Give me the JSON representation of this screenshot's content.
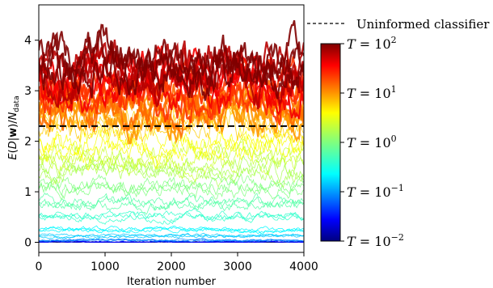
{
  "chart_data": {
    "type": "line",
    "title": "",
    "xlabel": "Iteration number",
    "ylabel": "E(D|w)/N_data",
    "xlim": [
      0,
      4000
    ],
    "ylim": [
      -0.2,
      4.7
    ],
    "x_ticks": [
      {
        "value": 0,
        "label": "0"
      },
      {
        "value": 1000,
        "label": "1000"
      },
      {
        "value": 2000,
        "label": "2000"
      },
      {
        "value": 3000,
        "label": "3000"
      },
      {
        "value": 4000,
        "label": "4000"
      }
    ],
    "y_ticks": [
      {
        "value": 0,
        "label": "0"
      },
      {
        "value": 1,
        "label": "1"
      },
      {
        "value": 2,
        "label": "2"
      },
      {
        "value": 3,
        "label": "3"
      },
      {
        "value": 4,
        "label": "4"
      }
    ],
    "reference_line": {
      "name": "Uninformed classifier",
      "y": 2.3,
      "style": "dashed",
      "color": "#000000"
    },
    "colormap": {
      "name": "jet",
      "variable": "T",
      "scale": "log",
      "range": [
        0.01,
        100
      ],
      "ticks": [
        {
          "value": 100,
          "label_base": "T = 10",
          "label_exp": "2"
        },
        {
          "value": 10,
          "label_base": "T = 10",
          "label_exp": "1"
        },
        {
          "value": 1,
          "label_base": "T = 10",
          "label_exp": "0"
        },
        {
          "value": 0.1,
          "label_base": "T = 10",
          "label_exp": "−1"
        },
        {
          "value": 0.01,
          "label_base": "T = 10",
          "label_exp": "−2"
        }
      ]
    },
    "series_by_temperature": [
      {
        "T": 0.01,
        "mean": 0.0
      },
      {
        "T": 0.03,
        "mean": 0.01
      },
      {
        "T": 0.1,
        "mean": 0.04
      },
      {
        "T": 0.2,
        "mean": 0.12
      },
      {
        "T": 0.3,
        "mean": 0.25
      },
      {
        "T": 0.5,
        "mean": 0.5
      },
      {
        "T": 0.7,
        "mean": 0.8
      },
      {
        "T": 1,
        "mean": 1.1
      },
      {
        "T": 1.5,
        "mean": 1.4
      },
      {
        "T": 2,
        "mean": 1.7
      },
      {
        "T": 3,
        "mean": 2.0
      },
      {
        "T": 5,
        "mean": 2.3
      },
      {
        "T": 8,
        "mean": 2.6
      },
      {
        "T": 12,
        "mean": 2.8
      },
      {
        "T": 20,
        "mean": 3.0
      },
      {
        "T": 35,
        "mean": 3.2
      },
      {
        "T": 60,
        "mean": 3.4
      },
      {
        "T": 100,
        "mean": 3.6
      }
    ],
    "grid": false,
    "legend_position": "top-right"
  }
}
